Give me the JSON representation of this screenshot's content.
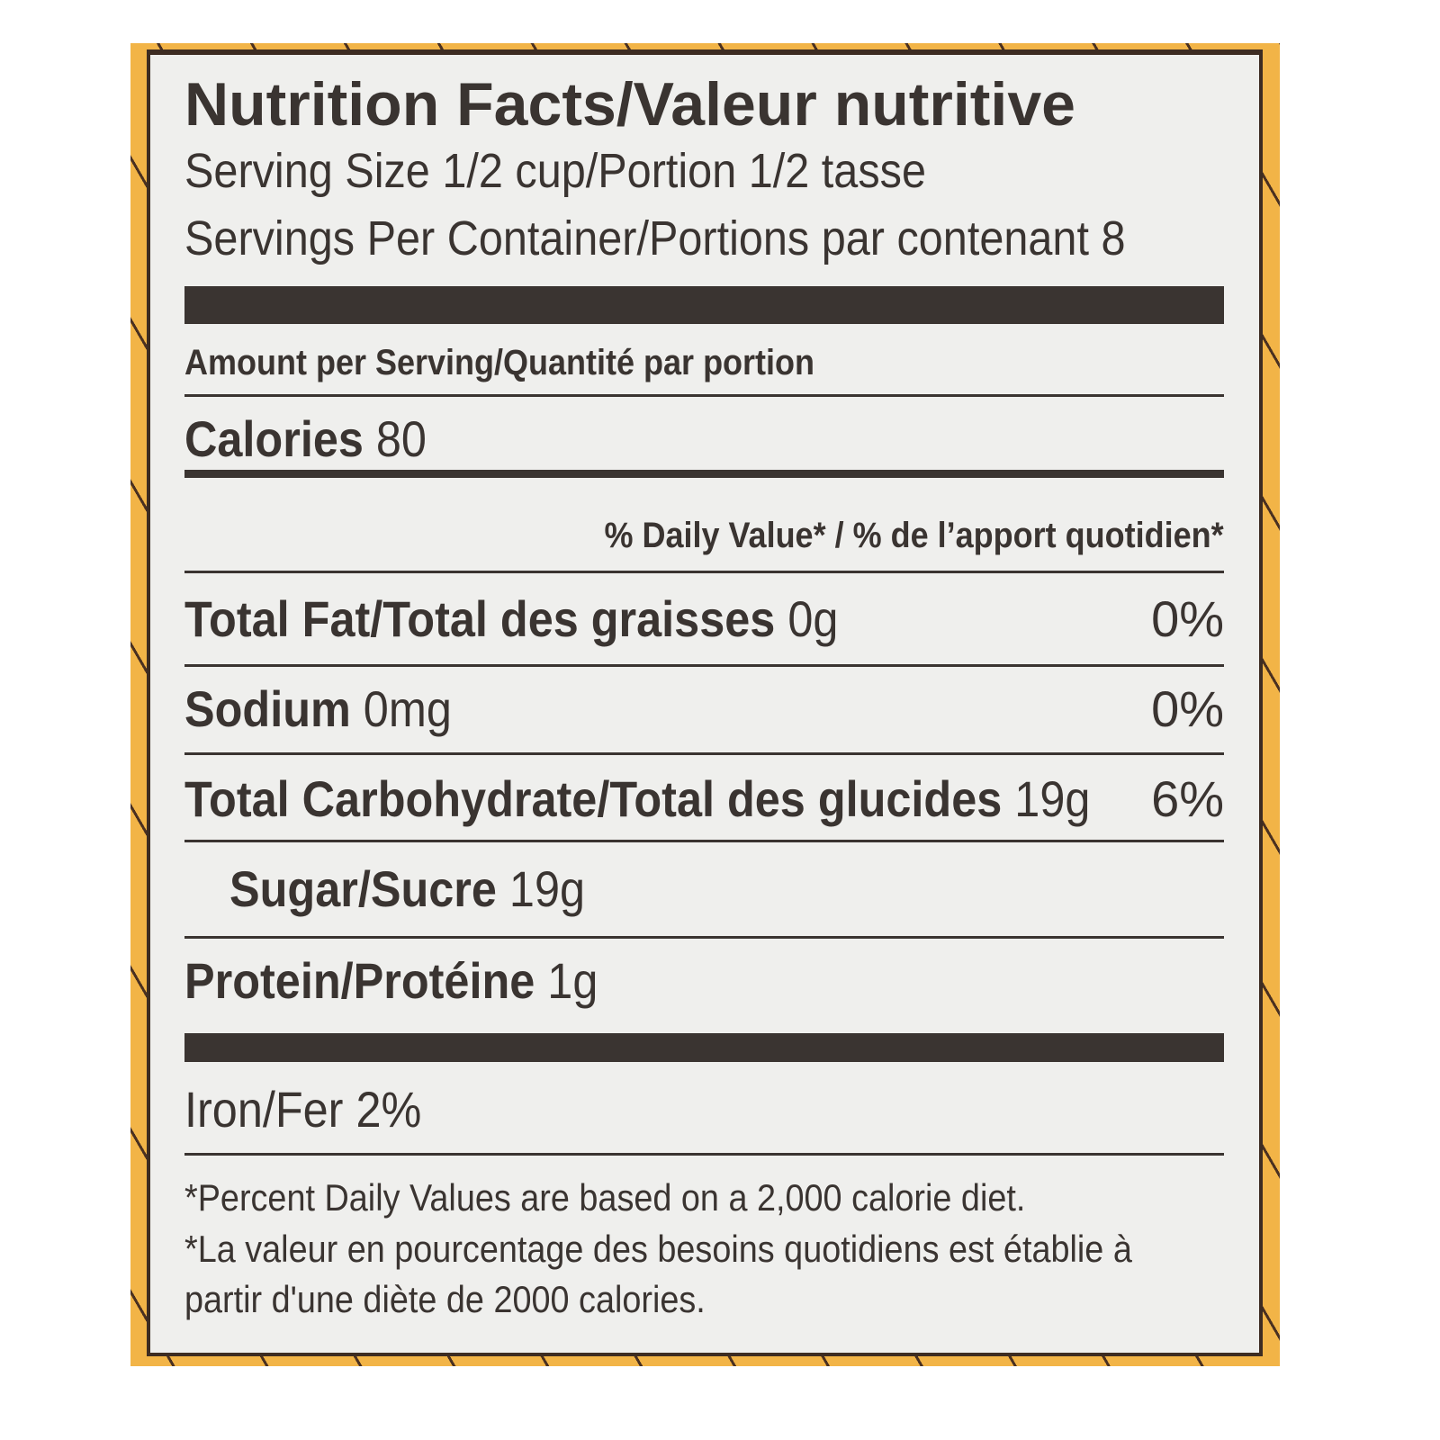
{
  "label": {
    "title": "Nutrition Facts/Valeur nutritive",
    "serving_size": "Serving Size 1/2 cup/Portion 1/2 tasse",
    "servings_per_container": "Servings Per Container/Portions par contenant 8",
    "amount_per_serving": "Amount per Serving/Quantité par portion",
    "calories_label": "Calories",
    "calories_value": "80",
    "daily_value_header": "% Daily Value* / % de l’apport quotidien*",
    "nutrients": [
      {
        "name": "Total Fat/Total des graisses",
        "amount": "0g",
        "dv": "0%"
      },
      {
        "name": "Sodium",
        "amount": "0mg",
        "dv": "0%"
      },
      {
        "name": "Total Carbohydrate/Total des glucides",
        "amount": "19g",
        "dv": "6%"
      },
      {
        "name": "Sugar/Sucre",
        "amount": "19g"
      },
      {
        "name": "Protein/Protéine",
        "amount": "1g"
      }
    ],
    "iron": "Iron/Fer 2%",
    "footnotes": [
      "*Percent Daily Values are based on a 2,000 calorie diet.",
      "*La valeur en pourcentage des besoins quotidiens est établie à",
      "partir d'une diète de 2000 calories."
    ]
  },
  "colors": {
    "background": "#f2b447",
    "panel": "#efefed",
    "text": "#3a3431"
  }
}
